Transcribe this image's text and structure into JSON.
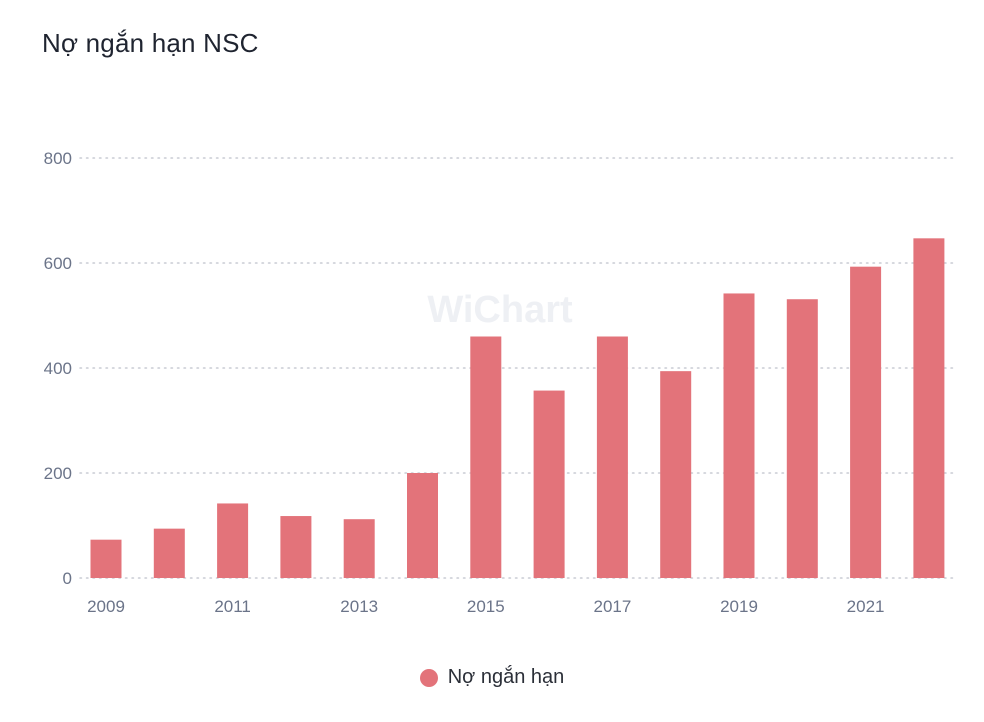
{
  "title": "Nợ ngắn hạn NSC",
  "watermark": "WiChart",
  "colors": {
    "bar": "#e3737a",
    "grid": "#c9ccd4",
    "axis_text": "#6b7489"
  },
  "chart_data": {
    "type": "bar",
    "title": "Nợ ngắn hạn NSC",
    "categories": [
      "2009",
      "2010",
      "2011",
      "2012",
      "2013",
      "2014",
      "2015",
      "2016",
      "2017",
      "2018",
      "2019",
      "2020",
      "2021",
      "2022"
    ],
    "x_tick_labels": [
      "2009",
      "2011",
      "2013",
      "2015",
      "2017",
      "2019",
      "2021"
    ],
    "series": [
      {
        "name": "Nợ ngắn hạn",
        "values": [
          73,
          94,
          142,
          118,
          112,
          200,
          460,
          357,
          460,
          394,
          542,
          531,
          593,
          647
        ]
      }
    ],
    "y_ticks": [
      0,
      200,
      400,
      600,
      800
    ],
    "ylim": [
      0,
      800
    ],
    "grid": true,
    "legend": "bottom-center"
  }
}
